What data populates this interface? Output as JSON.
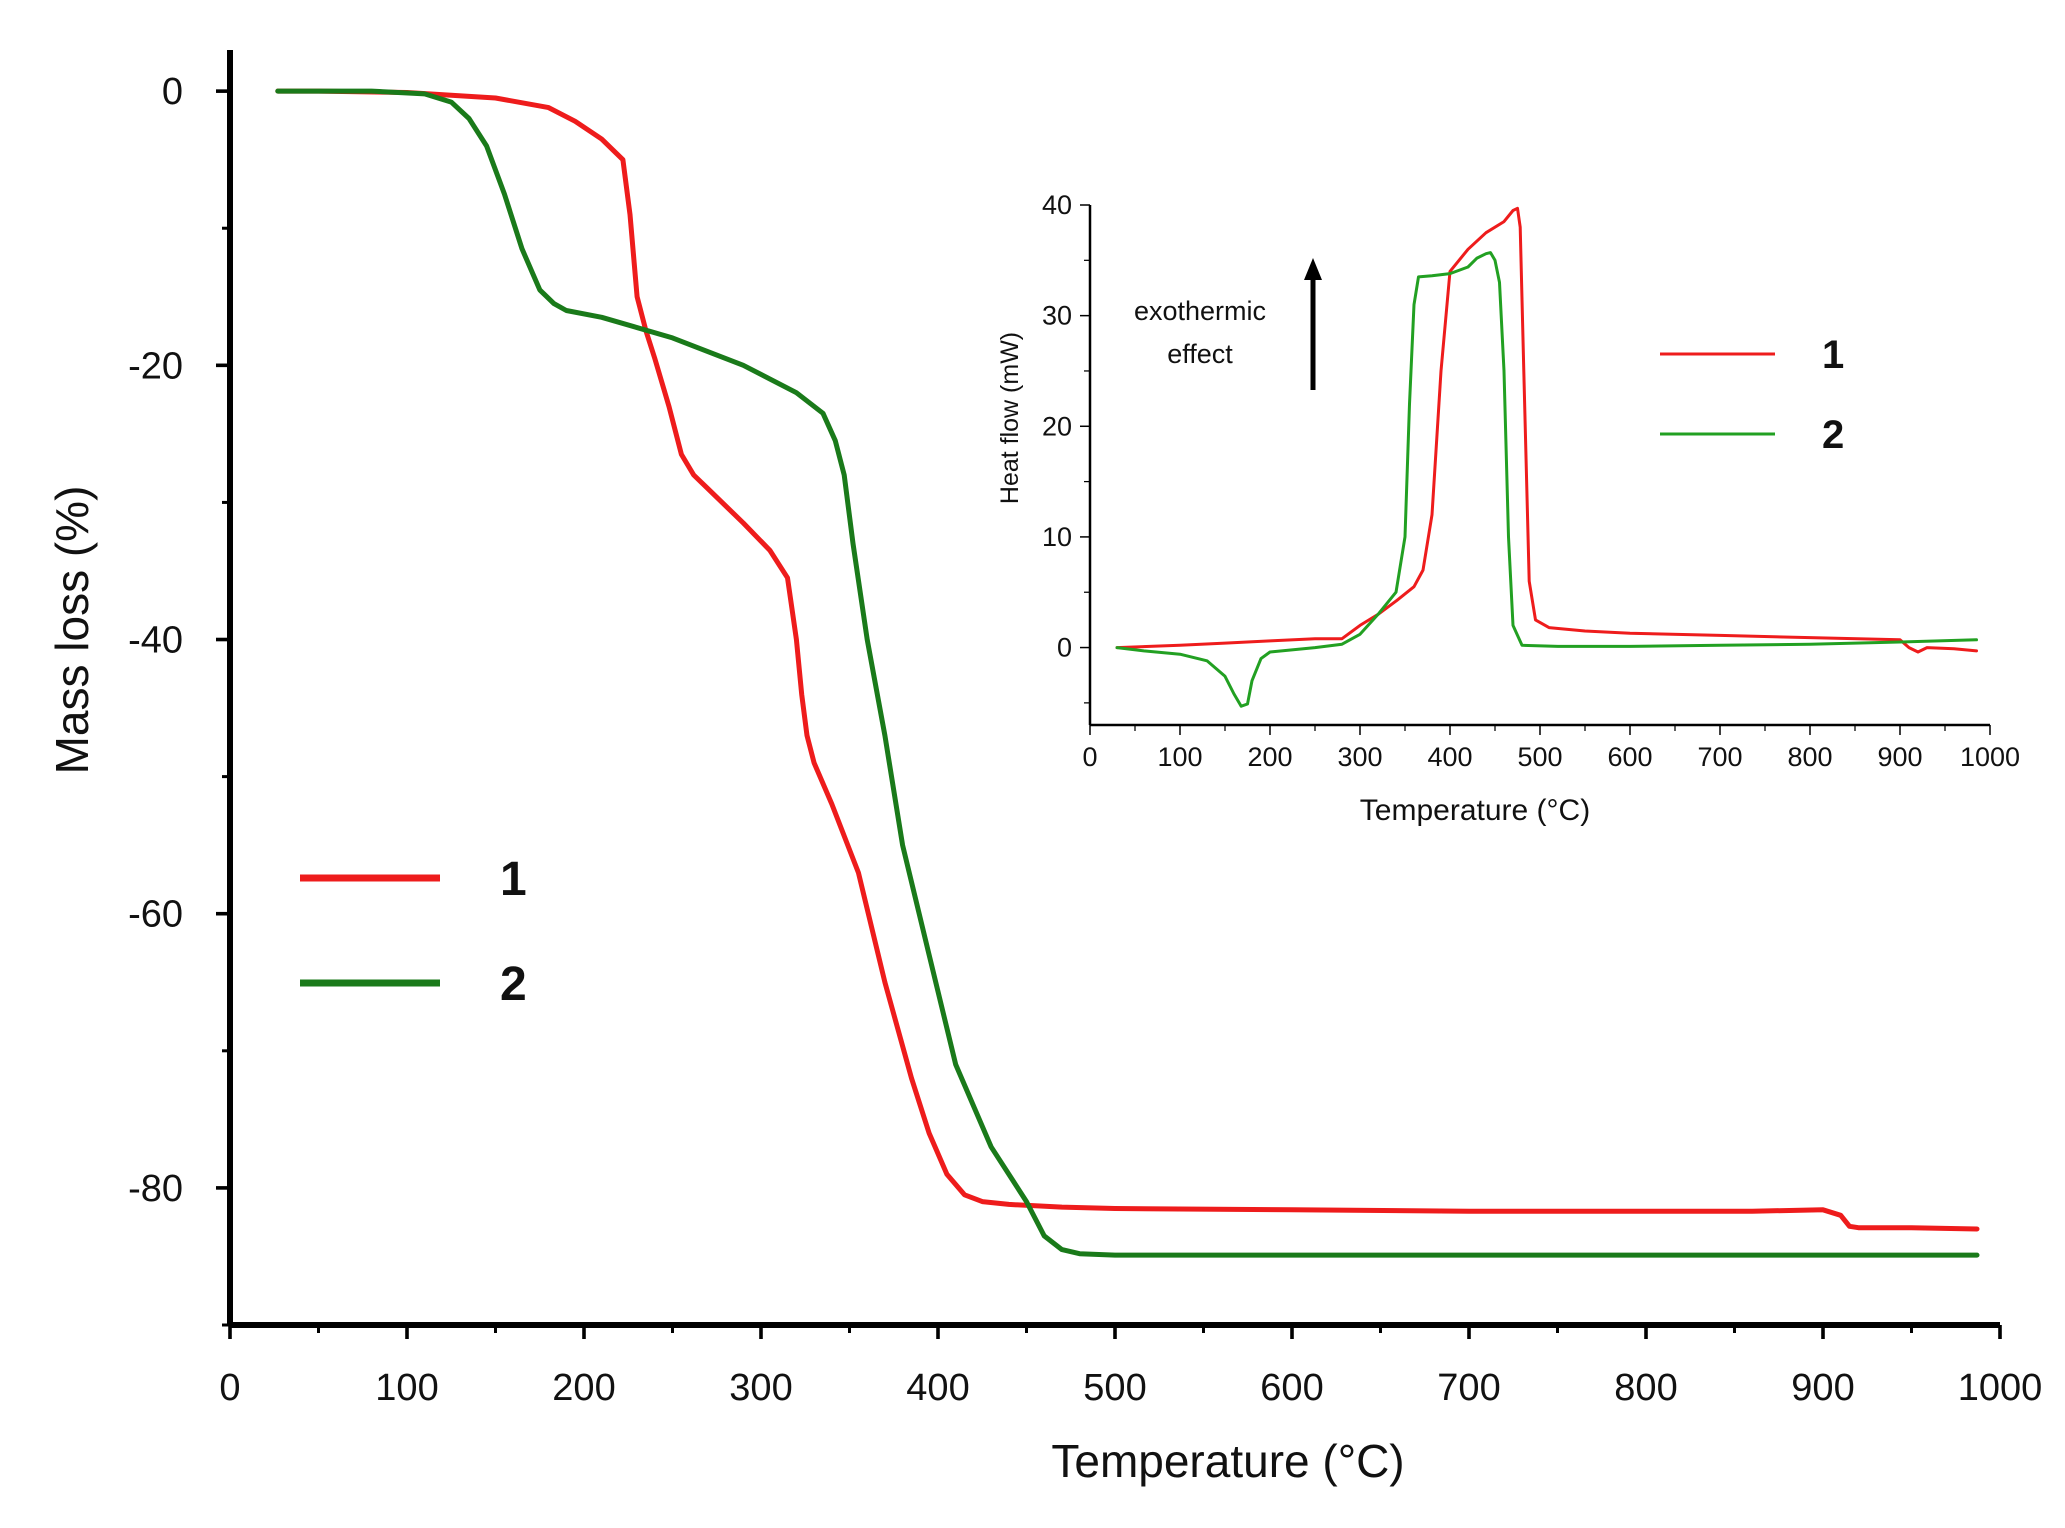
{
  "chart_data": [
    {
      "type": "line",
      "title": "",
      "xlabel": "Temperature (°C)",
      "ylabel": "Mass loss (%)",
      "xlim": [
        0,
        1000
      ],
      "ylim": [
        -90,
        3
      ],
      "xticks": [
        0,
        100,
        200,
        300,
        400,
        500,
        600,
        700,
        800,
        900,
        1000
      ],
      "xtick_labels": [
        "0",
        "100",
        "200",
        "300",
        "400",
        "500",
        "600",
        "700",
        "800",
        "900",
        "1000"
      ],
      "yticks": [
        0,
        -20,
        -40,
        -60,
        -80
      ],
      "ytick_labels": [
        "0",
        "-20",
        "-40",
        "-60",
        "-80"
      ],
      "grid": false,
      "legend_position": "middle-left",
      "series": [
        {
          "name": "1",
          "color": "#ee1c1c",
          "x": [
            27,
            50,
            100,
            150,
            180,
            195,
            210,
            222,
            226,
            230,
            235,
            240,
            248,
            255,
            262,
            270,
            290,
            305,
            315,
            320,
            323,
            326,
            330,
            340,
            355,
            370,
            385,
            395,
            405,
            415,
            425,
            440,
            470,
            500,
            600,
            700,
            800,
            860,
            900,
            910,
            915,
            920,
            950,
            987
          ],
          "y": [
            0,
            0,
            -0.1,
            -0.5,
            -1.2,
            -2.2,
            -3.5,
            -5,
            -9,
            -15,
            -17.5,
            -19.5,
            -23,
            -26.5,
            -28,
            -29,
            -31.5,
            -33.5,
            -35.5,
            -40,
            -44,
            -47,
            -49,
            -52,
            -57,
            -65,
            -72,
            -76,
            -79,
            -80.5,
            -81,
            -81.2,
            -81.4,
            -81.5,
            -81.6,
            -81.7,
            -81.7,
            -81.7,
            -81.6,
            -82,
            -82.8,
            -82.9,
            -82.9,
            -83
          ]
        },
        {
          "name": "2",
          "color": "#1a7a1a",
          "x": [
            27,
            80,
            110,
            125,
            135,
            145,
            155,
            165,
            175,
            183,
            190,
            210,
            250,
            290,
            320,
            335,
            342,
            347,
            352,
            360,
            370,
            380,
            395,
            410,
            430,
            450,
            460,
            470,
            480,
            500,
            600,
            700,
            800,
            900,
            987
          ],
          "y": [
            0,
            0,
            -0.2,
            -0.8,
            -2,
            -4,
            -7.5,
            -11.5,
            -14.5,
            -15.5,
            -16,
            -16.5,
            -18,
            -20,
            -22,
            -23.5,
            -25.5,
            -28,
            -33,
            -40,
            -47,
            -55,
            -63,
            -71,
            -77,
            -81,
            -83.5,
            -84.5,
            -84.8,
            -84.9,
            -84.9,
            -84.9,
            -84.9,
            -84.9,
            -84.9
          ]
        }
      ],
      "annotations": []
    },
    {
      "type": "line",
      "title": "",
      "xlabel": "Temperature (°C)",
      "ylabel": "Heat flow (mW)",
      "xlim": [
        0,
        1000
      ],
      "ylim": [
        -7,
        40
      ],
      "xticks": [
        0,
        100,
        200,
        300,
        400,
        500,
        600,
        700,
        800,
        900,
        1000
      ],
      "xtick_labels": [
        "0",
        "100",
        "200",
        "300",
        "400",
        "500",
        "600",
        "700",
        "800",
        "900",
        "1000"
      ],
      "yticks": [
        0,
        10,
        20,
        30,
        40
      ],
      "ytick_labels": [
        "0",
        "10",
        "20",
        "30",
        "40"
      ],
      "grid": false,
      "legend_position": "right",
      "annotation_text": [
        "exothermic",
        "effect"
      ],
      "series": [
        {
          "name": "1",
          "color": "#ee1c1c",
          "x": [
            30,
            100,
            150,
            200,
            250,
            280,
            300,
            320,
            340,
            360,
            370,
            380,
            390,
            400,
            420,
            440,
            460,
            470,
            475,
            478,
            482,
            488,
            495,
            510,
            550,
            600,
            700,
            800,
            900,
            910,
            920,
            930,
            960,
            985
          ],
          "y": [
            0,
            0.2,
            0.4,
            0.6,
            0.8,
            0.8,
            2,
            3,
            4.2,
            5.5,
            7,
            12,
            25,
            34,
            36,
            37.5,
            38.5,
            39.5,
            39.7,
            38,
            25,
            6,
            2.5,
            1.8,
            1.5,
            1.3,
            1.1,
            0.9,
            0.7,
            0,
            -0.4,
            0,
            -0.1,
            -0.3
          ]
        },
        {
          "name": "2",
          "color": "#22a022",
          "x": [
            30,
            60,
            100,
            130,
            150,
            160,
            168,
            175,
            180,
            190,
            200,
            250,
            280,
            300,
            320,
            340,
            350,
            355,
            360,
            365,
            380,
            400,
            420,
            430,
            440,
            445,
            450,
            455,
            460,
            465,
            470,
            480,
            520,
            600,
            700,
            800,
            900,
            985
          ],
          "y": [
            0,
            -0.3,
            -0.6,
            -1.2,
            -2.6,
            -4.2,
            -5.3,
            -5.1,
            -3,
            -1,
            -0.4,
            0,
            0.3,
            1.2,
            3,
            5,
            10,
            22,
            31,
            33.5,
            33.6,
            33.8,
            34.4,
            35.2,
            35.6,
            35.7,
            35,
            33,
            25,
            10,
            2,
            0.2,
            0.1,
            0.1,
            0.2,
            0.3,
            0.5,
            0.7
          ]
        }
      ]
    }
  ]
}
